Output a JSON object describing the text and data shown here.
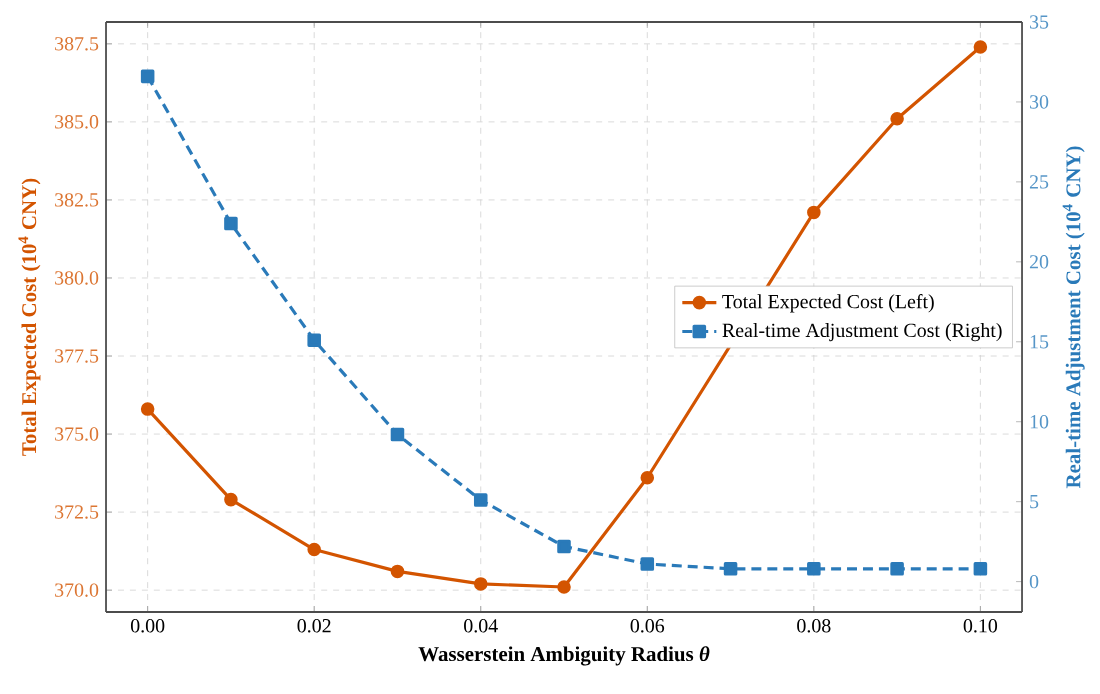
{
  "chart_data": {
    "type": "line",
    "xlabel": "Wasserstein Ambiguity Radius *θ*",
    "ylabel": "Total Expected Cost (10$^{4}$ CNY)",
    "y2label": "Real-time Adjustment Cost (10$^{4}$ CNY)",
    "x": [
      0.0,
      0.01,
      0.02,
      0.03,
      0.04,
      0.05,
      0.06,
      0.07,
      0.08,
      0.09,
      0.1
    ],
    "series": [
      {
        "name": "Total Expected Cost (Left)",
        "color": "#d35400",
        "marker": "circle",
        "line_style": "solid",
        "values": [
          375.8,
          372.9,
          371.3,
          370.6,
          370.2,
          370.1,
          373.6,
          null,
          382.1,
          385.1,
          387.4
        ]
      },
      {
        "name": "Real-time Adjustment Cost (Right)",
        "color": "#2a7ab9",
        "marker": "square",
        "line_style": "dashed",
        "axis": "y2",
        "values": [
          31.6,
          22.4,
          15.1,
          9.2,
          5.1,
          2.2,
          1.1,
          0.8,
          0.8,
          0.8,
          0.8
        ]
      }
    ],
    "xlim": [
      -0.005,
      0.105
    ],
    "xticks": [
      {
        "value": 0.0,
        "label": "0.00"
      },
      0.02,
      0.04,
      0.06,
      0.08,
      {
        "value": 0.1,
        "label": "0.10"
      }
    ],
    "ylim": [
      369.3,
      388.2
    ],
    "yticks": [
      {
        "value": 370,
        "label": "370.0"
      },
      372.5,
      {
        "value": 375,
        "label": "375.0"
      },
      377.5,
      {
        "value": 380,
        "label": "380.0"
      },
      382.5,
      {
        "value": 385,
        "label": "385.0"
      },
      387.5
    ],
    "y2lim": [
      -1.9,
      35
    ],
    "y2ticks": [
      0,
      5,
      10,
      15,
      20,
      25,
      30,
      35
    ],
    "grid": true,
    "legend": "right"
  }
}
